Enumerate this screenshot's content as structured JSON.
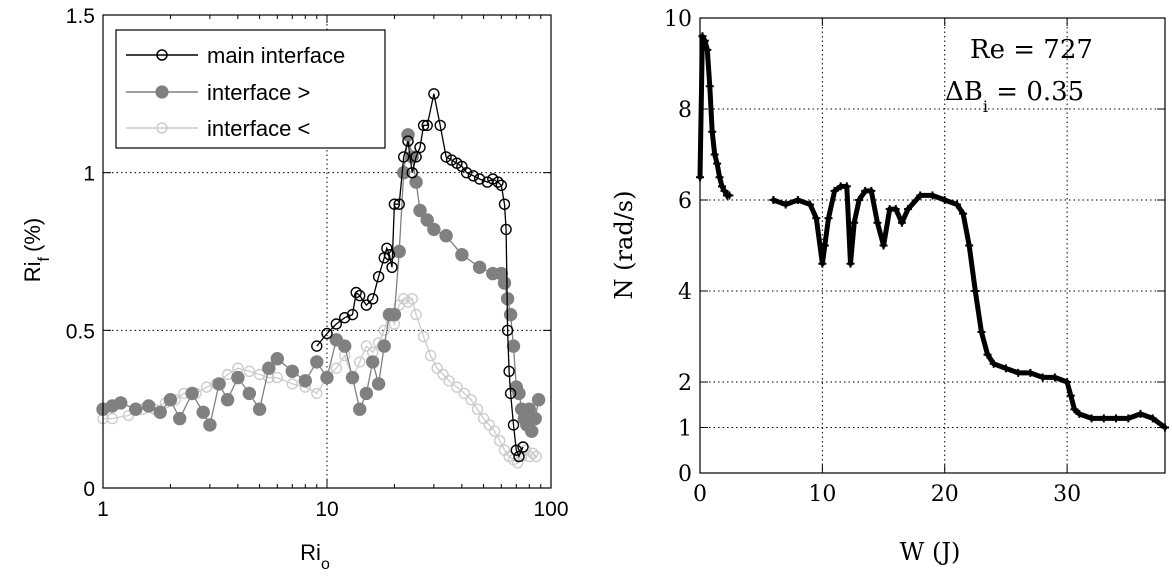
{
  "chart_data": [
    {
      "type": "scatter",
      "title": "",
      "xlabel": "Ri",
      "xlabel_sub": "o",
      "ylabel": "Ri",
      "ylabel_sub": "f",
      "ylabel_unit": "(%)",
      "xscale": "log",
      "xlim": [
        1,
        100
      ],
      "ylim": [
        0,
        1.5
      ],
      "xticks": [
        1,
        10,
        100
      ],
      "xtick_labels": [
        "1",
        "10",
        "100"
      ],
      "yticks": [
        0,
        0.5,
        1,
        1.5
      ],
      "ytick_labels": [
        "0",
        "0.5",
        "1",
        "1.5"
      ],
      "grid": true,
      "legend": "top-left",
      "series": [
        {
          "name": "main interface",
          "color": "#000000",
          "marker": "open-circle",
          "x": [
            9,
            10,
            11,
            12,
            13,
            13.5,
            14,
            15,
            16,
            17,
            18,
            18.5,
            19,
            19.5,
            20,
            21,
            22,
            23,
            24,
            25,
            26,
            27,
            28,
            30,
            32,
            34,
            36,
            38,
            40,
            42,
            45,
            48,
            52,
            55,
            58,
            60,
            62,
            63,
            64,
            65,
            66,
            68,
            70,
            72,
            75
          ],
          "y": [
            0.45,
            0.49,
            0.52,
            0.54,
            0.55,
            0.62,
            0.61,
            0.58,
            0.6,
            0.67,
            0.73,
            0.76,
            0.74,
            0.7,
            0.9,
            0.9,
            1.05,
            1.1,
            1.0,
            1.05,
            1.08,
            1.15,
            1.15,
            1.25,
            1.15,
            1.05,
            1.04,
            1.03,
            1.02,
            1.0,
            0.99,
            0.98,
            0.97,
            0.98,
            0.97,
            0.96,
            0.9,
            0.82,
            0.5,
            0.37,
            0.3,
            0.2,
            0.12,
            0.1,
            0.13
          ]
        },
        {
          "name": "interface >",
          "color": "#808080",
          "marker": "filled-circle",
          "x": [
            1,
            1.1,
            1.2,
            1.4,
            1.6,
            1.8,
            2,
            2.2,
            2.5,
            2.8,
            3,
            3.3,
            3.6,
            4,
            4.5,
            5,
            5.5,
            6,
            7,
            8,
            9,
            10,
            11,
            12,
            13,
            14,
            15,
            16,
            17,
            18,
            19,
            20,
            21,
            22,
            23,
            24,
            25,
            26,
            28,
            30,
            34,
            40,
            48,
            55,
            60,
            62,
            64,
            66,
            68,
            70,
            72,
            74,
            76,
            78,
            80,
            82,
            85,
            88
          ],
          "y": [
            0.25,
            0.26,
            0.27,
            0.25,
            0.26,
            0.24,
            0.28,
            0.22,
            0.3,
            0.24,
            0.2,
            0.33,
            0.28,
            0.35,
            0.3,
            0.25,
            0.38,
            0.41,
            0.37,
            0.34,
            0.4,
            0.35,
            0.47,
            0.45,
            0.35,
            0.25,
            0.3,
            0.4,
            0.33,
            0.45,
            0.55,
            0.55,
            0.75,
            1.0,
            1.12,
            1.05,
            0.97,
            0.88,
            0.85,
            0.82,
            0.8,
            0.74,
            0.7,
            0.68,
            0.68,
            0.65,
            0.6,
            0.55,
            0.45,
            0.32,
            0.3,
            0.25,
            0.22,
            0.2,
            0.25,
            0.18,
            0.22,
            0.28
          ]
        },
        {
          "name": "interface <",
          "color": "#cccccc",
          "marker": "open-circle",
          "x": [
            1,
            1.1,
            1.3,
            1.5,
            1.7,
            1.9,
            2.1,
            2.3,
            2.6,
            2.9,
            3.2,
            3.6,
            4,
            4.5,
            5,
            5.5,
            6,
            7,
            8,
            9,
            10,
            11,
            12,
            13,
            14,
            15,
            16,
            17,
            18,
            19,
            20,
            21,
            22,
            23,
            24,
            25,
            27,
            29,
            31,
            33,
            35,
            38,
            41,
            44,
            47,
            50,
            53,
            56,
            59,
            62,
            65,
            68,
            71,
            74,
            77,
            80,
            83,
            86
          ],
          "y": [
            0.22,
            0.22,
            0.23,
            0.25,
            0.25,
            0.27,
            0.28,
            0.3,
            0.3,
            0.32,
            0.33,
            0.36,
            0.38,
            0.37,
            0.36,
            0.35,
            0.35,
            0.33,
            0.32,
            0.3,
            0.35,
            0.38,
            0.42,
            0.35,
            0.4,
            0.45,
            0.43,
            0.46,
            0.5,
            0.55,
            0.52,
            0.58,
            0.6,
            0.59,
            0.6,
            0.55,
            0.48,
            0.42,
            0.38,
            0.36,
            0.34,
            0.32,
            0.3,
            0.28,
            0.25,
            0.22,
            0.2,
            0.18,
            0.15,
            0.12,
            0.1,
            0.09,
            0.08,
            0.1,
            0.12,
            0.1,
            0.11,
            0.1
          ]
        }
      ]
    },
    {
      "type": "scatter",
      "title": "",
      "xlabel": "W (J)",
      "ylabel": "N (rad/s)",
      "xlim": [
        0,
        38
      ],
      "ylim": [
        0,
        10
      ],
      "xticks": [
        0,
        10,
        20,
        30
      ],
      "xtick_labels": [
        "0",
        "10",
        "20",
        "30"
      ],
      "yticks": [
        0,
        1,
        2,
        4,
        6,
        8,
        10
      ],
      "ytick_labels": [
        "0",
        "1",
        "2",
        "4",
        "6",
        "8",
        "10"
      ],
      "grid": true,
      "annotation_re": "Re = 727",
      "annotation_db": "ΔB",
      "annotation_db_sub": "i",
      "annotation_db_val": " = 0.35",
      "series": [
        {
          "color": "#000000",
          "marker": "plus",
          "x": [
            0,
            0.2,
            0.4,
            0.6,
            0.8,
            1.0,
            1.2,
            1.4,
            1.6,
            1.8,
            2.0,
            2.2,
            2.4,
            6,
            7,
            8,
            9,
            9.5,
            10,
            10.2,
            10.5,
            11,
            11.5,
            12,
            12.3,
            12.6,
            13,
            13.5,
            14,
            14.5,
            15,
            15.5,
            16,
            16.5,
            17,
            18,
            19,
            20,
            21,
            21.5,
            22,
            22.5,
            23,
            23.5,
            24,
            25,
            26,
            27,
            28,
            29,
            30,
            30.3,
            30.6,
            31,
            32,
            33,
            34,
            35,
            36,
            37,
            38
          ],
          "y": [
            6.5,
            9.6,
            9.5,
            9.3,
            8.5,
            7.5,
            7.0,
            6.8,
            6.5,
            6.3,
            6.2,
            6.1,
            6.1,
            6.0,
            5.9,
            6.0,
            5.9,
            5.6,
            4.6,
            5.0,
            5.6,
            6.2,
            6.3,
            6.3,
            4.6,
            5.5,
            6.0,
            6.2,
            6.2,
            5.5,
            5.0,
            5.8,
            5.8,
            5.5,
            5.8,
            6.1,
            6.1,
            6.0,
            5.9,
            5.7,
            5.0,
            4.0,
            3.1,
            2.6,
            2.4,
            2.3,
            2.2,
            2.2,
            2.1,
            2.1,
            2.0,
            1.7,
            1.4,
            1.3,
            1.2,
            1.2,
            1.2,
            1.2,
            1.3,
            1.2,
            1.0
          ]
        }
      ]
    }
  ],
  "colors": {
    "grid": "#000000",
    "axis": "#000000",
    "background": "#ffffff"
  }
}
